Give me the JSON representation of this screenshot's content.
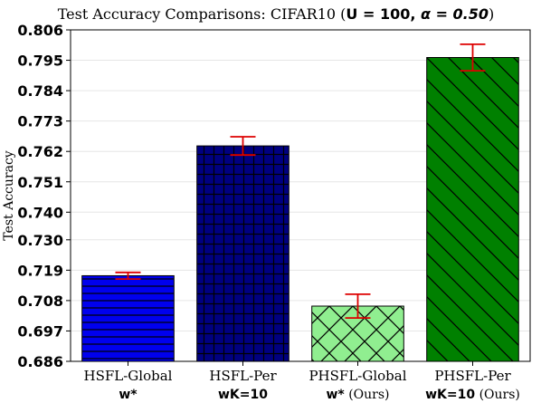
{
  "chart_data": {
    "type": "bar",
    "title_prefix": "Test Accuracy Comparisons: CIFAR10 (",
    "title_U": "U = 100, ",
    "title_alpha": "α = 0.50",
    "title_suffix": ")",
    "ylabel": "Test Accuracy",
    "ylim": [
      0.686,
      0.806
    ],
    "yticks": [
      "0.686",
      "0.697",
      "0.708",
      "0.719",
      "0.730",
      "0.740",
      "0.751",
      "0.762",
      "0.773",
      "0.784",
      "0.795",
      "0.806"
    ],
    "categories": [
      {
        "label": "HSFL-Global",
        "sub_bold": "w*",
        "sub_rest": ""
      },
      {
        "label": "HSFL-Per",
        "sub_bold": "wK=10",
        "sub_rest": ""
      },
      {
        "label": "PHSFL-Global",
        "sub_bold": "w*",
        "sub_rest": " (Ours)"
      },
      {
        "label": "PHSFL-Per",
        "sub_bold": "wK=10",
        "sub_rest": " (Ours)"
      }
    ],
    "values": [
      0.717,
      0.764,
      0.706,
      0.796
    ],
    "errors": [
      0.0012,
      0.0033,
      0.0043,
      0.0048
    ],
    "bar_colors": [
      "#0000ee",
      "#000080",
      "#90ee90",
      "#008000"
    ],
    "hatches": [
      "horizontal",
      "grid",
      "crosshatch",
      "diagonal"
    ],
    "error_color": "#dd0000",
    "grid": true
  }
}
